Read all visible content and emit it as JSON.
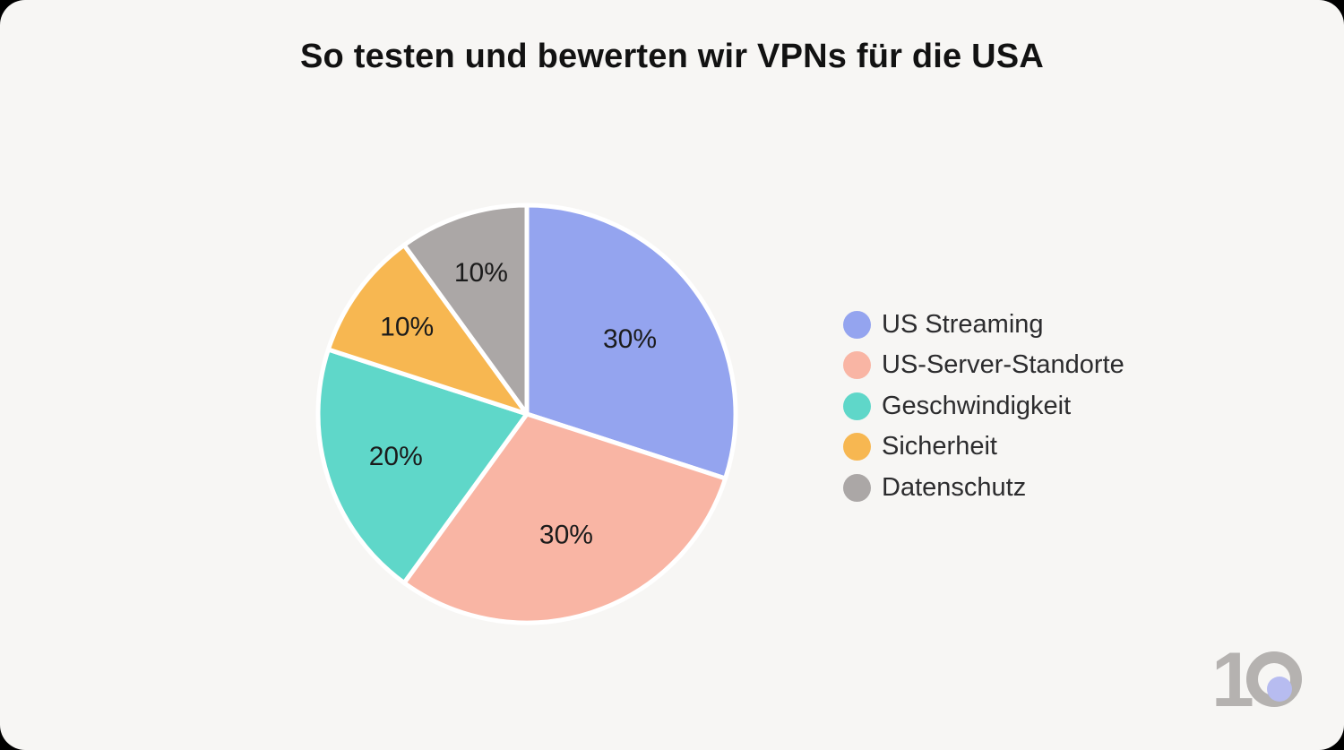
{
  "chart_data": {
    "type": "pie",
    "title": "So testen und bewerten wir VPNs für die USA",
    "direction": "clockwise",
    "start_angle_deg": 0,
    "legend_position": "right",
    "grid": false,
    "slice_label_color": "#1b1b1b",
    "categories": [
      "US Streaming",
      "US-Server-Standorte",
      "Geschwindigkeit",
      "Sicherheit",
      "Datenschutz"
    ],
    "values": [
      30,
      30,
      20,
      10,
      10
    ],
    "slices": [
      {
        "label": "US Streaming",
        "value": 30,
        "display": "30%",
        "color": "#94a4ef"
      },
      {
        "label": "US-Server-Standorte",
        "value": 30,
        "display": "30%",
        "color": "#f9b5a4"
      },
      {
        "label": "Geschwindigkeit",
        "value": 20,
        "display": "20%",
        "color": "#5fd7c9"
      },
      {
        "label": "Sicherheit",
        "value": 10,
        "display": "10%",
        "color": "#f7b751"
      },
      {
        "label": "Datenschutz",
        "value": 10,
        "display": "10%",
        "color": "#aba7a6"
      }
    ]
  },
  "logo": {
    "text": "10",
    "color": "#b5b2b0",
    "dot_color": "#b7bcf0"
  },
  "theme": {
    "card_background": "#f7f6f4",
    "outer_background": "#000000",
    "slice_divider": "#ffffff"
  }
}
